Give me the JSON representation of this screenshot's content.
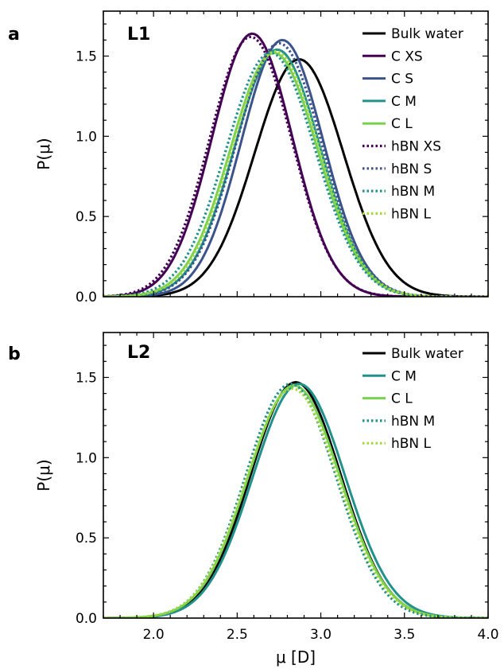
{
  "chart_data": [
    {
      "panel_letter": "a",
      "panel_title": "L1",
      "type": "line",
      "xlim": [
        1.7,
        4.0
      ],
      "ylim": [
        0,
        1.78
      ],
      "xticks": [],
      "xtick_labels": [],
      "yticks": [
        0,
        0.5,
        1.0,
        1.5
      ],
      "ytick_labels": [
        "0.0",
        "0.5",
        "1.0",
        "1.5"
      ],
      "ylabel": "P(μ)",
      "xlabel": "",
      "legend_placement": "top-right",
      "grid": false,
      "series": [
        {
          "name": "Bulk water",
          "color": "#000000",
          "dash": "solid",
          "mu": 2.87,
          "sigma": 0.265,
          "peak": 1.48
        },
        {
          "name": "C XS",
          "color": "#440154",
          "dash": "solid",
          "mu": 2.59,
          "sigma": 0.24,
          "peak": 1.64
        },
        {
          "name": "C S",
          "color": "#3b528b",
          "dash": "solid",
          "mu": 2.77,
          "sigma": 0.245,
          "peak": 1.6
        },
        {
          "name": "C M",
          "color": "#21918c",
          "dash": "solid",
          "mu": 2.74,
          "sigma": 0.255,
          "peak": 1.54
        },
        {
          "name": "C L",
          "color": "#7ad151",
          "dash": "solid",
          "mu": 2.72,
          "sigma": 0.26,
          "peak": 1.52
        },
        {
          "name": "hBN XS",
          "color": "#440154",
          "dash": "dotted",
          "mu": 2.58,
          "sigma": 0.245,
          "peak": 1.62
        },
        {
          "name": "hBN S",
          "color": "#3b528b",
          "dash": "dotted",
          "mu": 2.75,
          "sigma": 0.255,
          "peak": 1.58
        },
        {
          "name": "hBN M",
          "color": "#21918c",
          "dash": "dotted",
          "mu": 2.7,
          "sigma": 0.265,
          "peak": 1.52
        },
        {
          "name": "hBN L",
          "color": "#a0da39",
          "dash": "dotted",
          "mu": 2.73,
          "sigma": 0.26,
          "peak": 1.53
        }
      ]
    },
    {
      "panel_letter": "b",
      "panel_title": "L2",
      "type": "line",
      "xlim": [
        1.7,
        4.0
      ],
      "ylim": [
        0,
        1.78
      ],
      "xticks": [
        2.0,
        2.5,
        3.0,
        3.5,
        4.0
      ],
      "xtick_labels": [
        "2.0",
        "2.5",
        "3.0",
        "3.5",
        "4.0"
      ],
      "yticks": [
        0,
        0.5,
        1.0,
        1.5
      ],
      "ytick_labels": [
        "0.0",
        "0.5",
        "1.0",
        "1.5"
      ],
      "ylabel": "P(μ)",
      "xlabel": "μ [D]",
      "legend_placement": "top-right",
      "grid": false,
      "series": [
        {
          "name": "Bulk water",
          "color": "#000000",
          "dash": "solid",
          "mu": 2.85,
          "sigma": 0.27,
          "peak": 1.47
        },
        {
          "name": "C M",
          "color": "#21918c",
          "dash": "solid",
          "mu": 2.87,
          "sigma": 0.275,
          "peak": 1.46
        },
        {
          "name": "C L",
          "color": "#7ad151",
          "dash": "solid",
          "mu": 2.84,
          "sigma": 0.275,
          "peak": 1.45
        },
        {
          "name": "hBN M",
          "color": "#21918c",
          "dash": "dotted",
          "mu": 2.82,
          "sigma": 0.27,
          "peak": 1.46
        },
        {
          "name": "hBN L",
          "color": "#a0da39",
          "dash": "dotted",
          "mu": 2.83,
          "sigma": 0.275,
          "peak": 1.43
        }
      ]
    }
  ]
}
